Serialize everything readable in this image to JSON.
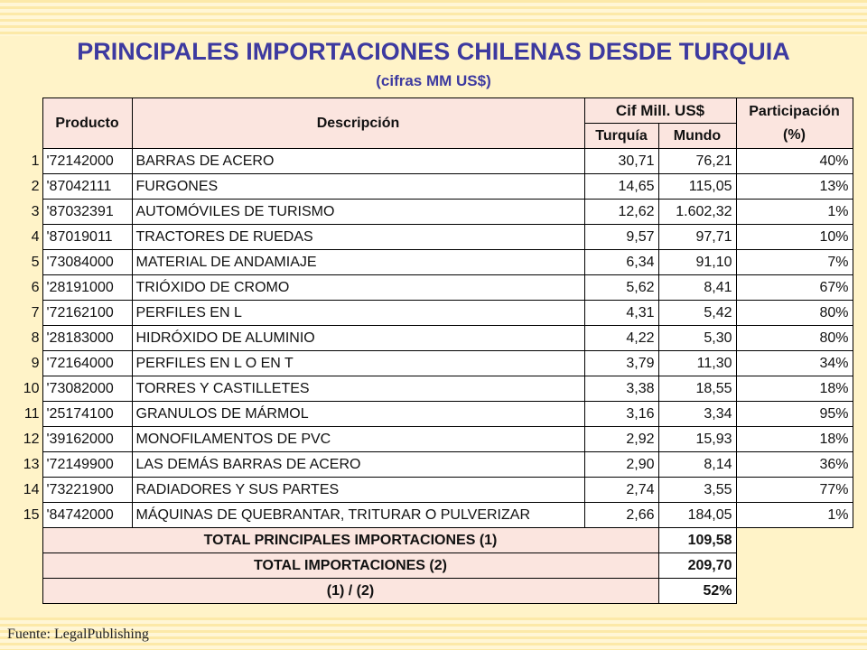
{
  "title": "PRINCIPALES IMPORTACIONES CHILENAS DESDE TURQUIA",
  "subtitle": "(cifras MM US$)",
  "headers": {
    "producto": "Producto",
    "descripcion": "Descripción",
    "cif": "Cif Mill. US$",
    "turquia": "Turquía",
    "mundo": "Mundo",
    "participacion": "Participación",
    "participacion_unit": "(%)"
  },
  "rows": [
    {
      "n": "1",
      "producto": "'72142000",
      "descripcion": "BARRAS DE ACERO",
      "turquia": "30,71",
      "mundo": "76,21",
      "participacion": "40%"
    },
    {
      "n": "2",
      "producto": "'87042111",
      "descripcion": "FURGONES",
      "turquia": "14,65",
      "mundo": "115,05",
      "participacion": "13%"
    },
    {
      "n": "3",
      "producto": "'87032391",
      "descripcion": "AUTOMÓVILES DE TURISMO",
      "turquia": "12,62",
      "mundo": "1.602,32",
      "participacion": "1%"
    },
    {
      "n": "4",
      "producto": "'87019011",
      "descripcion": "TRACTORES DE RUEDAS",
      "turquia": "9,57",
      "mundo": "97,71",
      "participacion": "10%"
    },
    {
      "n": "5",
      "producto": "'73084000",
      "descripcion": "MATERIAL DE ANDAMIAJE",
      "turquia": "6,34",
      "mundo": "91,10",
      "participacion": "7%"
    },
    {
      "n": "6",
      "producto": "'28191000",
      "descripcion": "TRIÓXIDO DE CROMO",
      "turquia": "5,62",
      "mundo": "8,41",
      "participacion": "67%"
    },
    {
      "n": "7",
      "producto": "'72162100",
      "descripcion": "PERFILES EN L",
      "turquia": "4,31",
      "mundo": "5,42",
      "participacion": "80%"
    },
    {
      "n": "8",
      "producto": "'28183000",
      "descripcion": "HIDRÓXIDO DE ALUMINIO",
      "turquia": "4,22",
      "mundo": "5,30",
      "participacion": "80%"
    },
    {
      "n": "9",
      "producto": "'72164000",
      "descripcion": "PERFILES EN L O EN T",
      "turquia": "3,79",
      "mundo": "11,30",
      "participacion": "34%"
    },
    {
      "n": "10",
      "producto": "'73082000",
      "descripcion": "TORRES Y CASTILLETES",
      "turquia": "3,38",
      "mundo": "18,55",
      "participacion": "18%"
    },
    {
      "n": "11",
      "producto": "'25174100",
      "descripcion": "GRANULOS DE MÁRMOL",
      "turquia": "3,16",
      "mundo": "3,34",
      "participacion": "95%"
    },
    {
      "n": "12",
      "producto": "'39162000",
      "descripcion": "MONOFILAMENTOS DE PVC",
      "turquia": "2,92",
      "mundo": "15,93",
      "participacion": "18%"
    },
    {
      "n": "13",
      "producto": "'72149900",
      "descripcion": "LAS DEMÁS BARRAS DE ACERO",
      "turquia": "2,90",
      "mundo": "8,14",
      "participacion": "36%"
    },
    {
      "n": "14",
      "producto": "'73221900",
      "descripcion": "RADIADORES Y SUS PARTES",
      "turquia": "2,74",
      "mundo": "3,55",
      "participacion": "77%"
    },
    {
      "n": "15",
      "producto": "'84742000",
      "descripcion": "MÁQUINAS DE QUEBRANTAR, TRITURAR O PULVERIZAR",
      "turquia": "2,66",
      "mundo": "184,05",
      "participacion": "1%"
    }
  ],
  "totals": [
    {
      "label": "TOTAL PRINCIPALES IMPORTACIONES (1)",
      "value": "109,58"
    },
    {
      "label": "TOTAL IMPORTACIONES (2)",
      "value": "209,70"
    },
    {
      "label": "(1)  /  (2)",
      "value": "52%"
    }
  ],
  "source": "Fuente: LegalPublishing"
}
